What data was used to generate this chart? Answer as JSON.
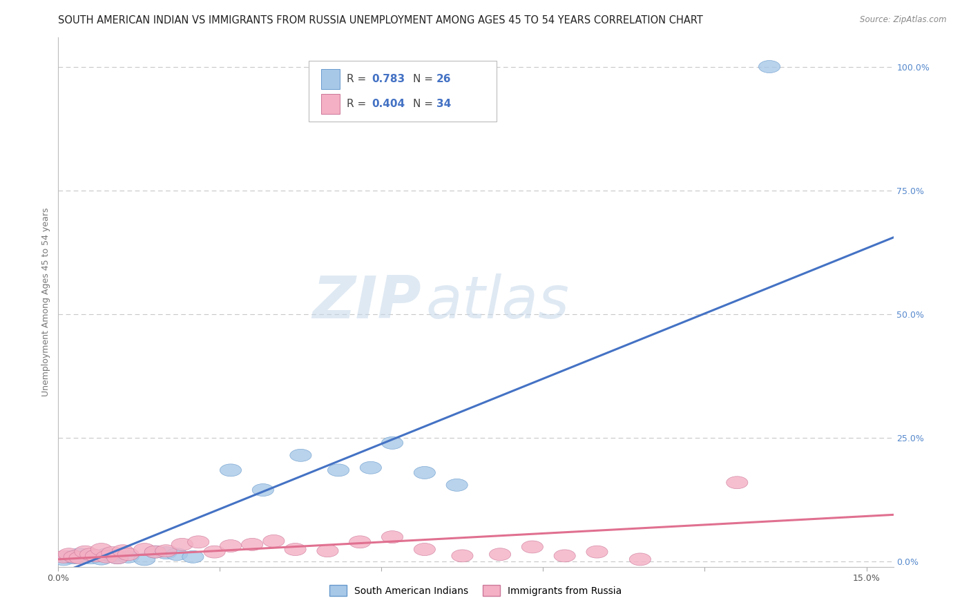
{
  "title": "SOUTH AMERICAN INDIAN VS IMMIGRANTS FROM RUSSIA UNEMPLOYMENT AMONG AGES 45 TO 54 YEARS CORRELATION CHART",
  "source": "Source: ZipAtlas.com",
  "ylabel": "Unemployment Among Ages 45 to 54 years",
  "xlim": [
    0.0,
    0.155
  ],
  "ylim": [
    -0.01,
    1.06
  ],
  "ytick_positions": [
    0.0,
    0.25,
    0.5,
    0.75,
    1.0
  ],
  "ytick_labels": [
    "0.0%",
    "25.0%",
    "50.0%",
    "75.0%",
    "100.0%"
  ],
  "xtick_positions": [
    0.0,
    0.03,
    0.06,
    0.09,
    0.12,
    0.15
  ],
  "blue_color": "#a8c8e8",
  "pink_color": "#f4b0c4",
  "blue_line_color": "#4472c4",
  "pink_line_color": "#e07090",
  "legend_label_blue": "South American Indians",
  "legend_label_pink": "Immigrants from Russia",
  "blue_R": "0.783",
  "blue_N": "26",
  "pink_R": "0.404",
  "pink_N": "34",
  "blue_x": [
    0.001,
    0.002,
    0.003,
    0.004,
    0.005,
    0.006,
    0.007,
    0.008,
    0.009,
    0.01,
    0.011,
    0.013,
    0.016,
    0.018,
    0.02,
    0.022,
    0.025,
    0.032,
    0.038,
    0.045,
    0.052,
    0.058,
    0.062,
    0.068,
    0.074,
    0.132
  ],
  "blue_y": [
    0.005,
    0.01,
    0.008,
    0.015,
    0.01,
    0.008,
    0.012,
    0.006,
    0.015,
    0.012,
    0.008,
    0.01,
    0.005,
    0.02,
    0.018,
    0.015,
    0.01,
    0.185,
    0.145,
    0.215,
    0.185,
    0.19,
    0.24,
    0.18,
    0.155,
    1.0
  ],
  "pink_x": [
    0.001,
    0.002,
    0.003,
    0.004,
    0.005,
    0.006,
    0.007,
    0.008,
    0.009,
    0.01,
    0.011,
    0.012,
    0.013,
    0.016,
    0.018,
    0.02,
    0.023,
    0.026,
    0.029,
    0.032,
    0.036,
    0.04,
    0.044,
    0.05,
    0.056,
    0.062,
    0.068,
    0.075,
    0.082,
    0.088,
    0.094,
    0.1,
    0.108,
    0.126
  ],
  "pink_y": [
    0.01,
    0.015,
    0.01,
    0.008,
    0.02,
    0.015,
    0.012,
    0.025,
    0.01,
    0.018,
    0.008,
    0.022,
    0.015,
    0.025,
    0.02,
    0.022,
    0.035,
    0.04,
    0.02,
    0.032,
    0.035,
    0.042,
    0.025,
    0.022,
    0.04,
    0.05,
    0.025,
    0.012,
    0.015,
    0.03,
    0.012,
    0.02,
    0.005,
    0.16
  ],
  "blue_line_x": [
    0.0,
    0.155
  ],
  "blue_line_y": [
    -0.025,
    0.655
  ],
  "pink_line_x": [
    0.0,
    0.155
  ],
  "pink_line_y": [
    0.005,
    0.095
  ],
  "title_fontsize": 10.5,
  "axis_tick_fontsize": 9,
  "ylabel_fontsize": 9,
  "background_color": "#ffffff",
  "grid_color": "#c8c8c8"
}
